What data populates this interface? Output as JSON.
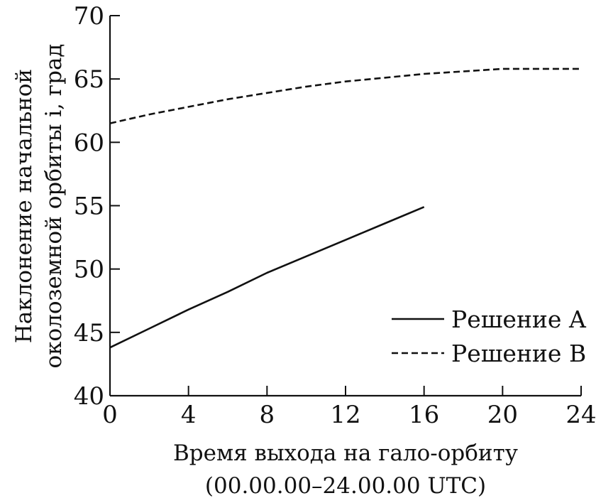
{
  "chart_data": {
    "type": "line",
    "xlabel_lines": [
      "Время выхода на гало-орбиту",
      "(00.00.00–24.00.00 UTC)"
    ],
    "ylabel_lines": [
      "Наклонение начальной",
      "околоземной орбиты i, град"
    ],
    "xlim": [
      0,
      24
    ],
    "ylim": [
      40,
      70
    ],
    "xticks": [
      0,
      4,
      8,
      12,
      16,
      20,
      24
    ],
    "yticks": [
      40,
      45,
      50,
      55,
      60,
      65,
      70
    ],
    "grid": false,
    "legend_position": "bottom-right",
    "series": [
      {
        "name": "Решение A",
        "style": "solid",
        "color": "#111111",
        "points": [
          [
            0,
            43.8
          ],
          [
            2,
            45.3
          ],
          [
            4,
            46.8
          ],
          [
            6,
            48.2
          ],
          [
            8,
            49.7
          ],
          [
            10,
            51.0
          ],
          [
            12,
            52.3
          ],
          [
            14,
            53.6
          ],
          [
            16,
            54.9
          ]
        ]
      },
      {
        "name": "Решение B",
        "style": "dashed",
        "color": "#111111",
        "points": [
          [
            0,
            61.5
          ],
          [
            2,
            62.2
          ],
          [
            4,
            62.8
          ],
          [
            6,
            63.4
          ],
          [
            8,
            63.9
          ],
          [
            10,
            64.4
          ],
          [
            12,
            64.8
          ],
          [
            14,
            65.1
          ],
          [
            16,
            65.4
          ],
          [
            18,
            65.6
          ],
          [
            20,
            65.8
          ],
          [
            22,
            65.8
          ],
          [
            24,
            65.8
          ]
        ]
      }
    ]
  }
}
